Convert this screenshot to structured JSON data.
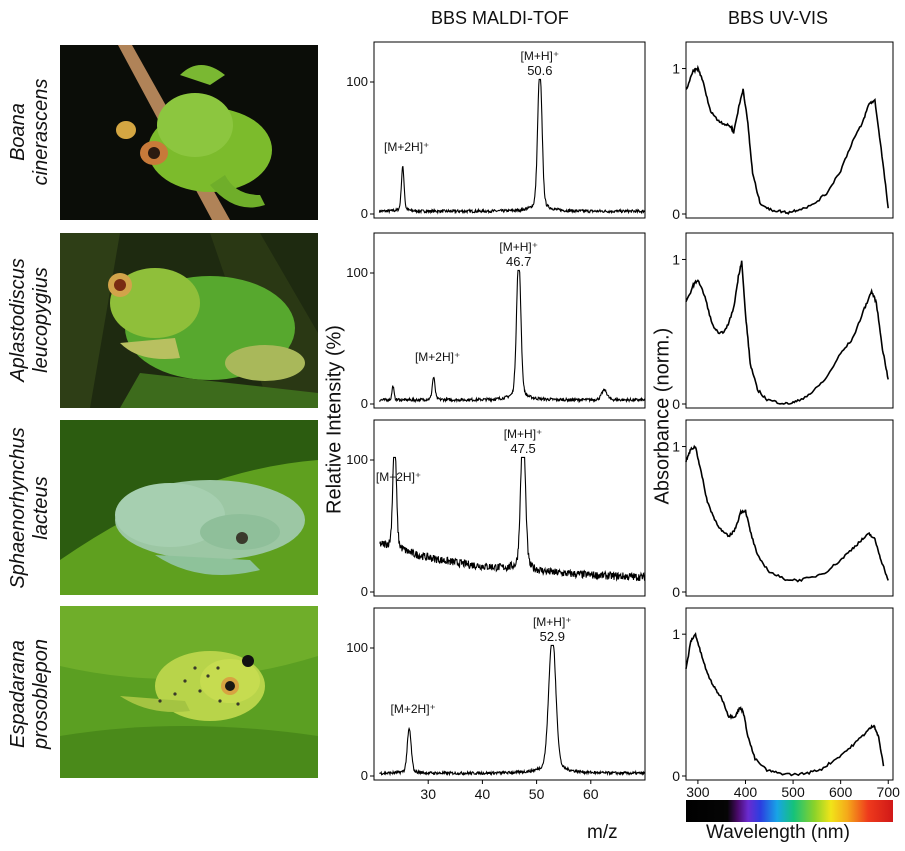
{
  "titles": {
    "maldi": "BBS MALDI-TOF",
    "uvvis": "BBS UV-VIS"
  },
  "species": [
    {
      "genus": "Boana",
      "epithet": "cinerascens"
    },
    {
      "genus": "Aplastodiscus",
      "epithet": "leucopygius"
    },
    {
      "genus": "Sphaenorhynchus",
      "epithet": "lacteus"
    },
    {
      "genus": "Espadarana",
      "epithet": "prosoblepon"
    }
  ],
  "axis_labels": {
    "maldi_y": "Relative Intensity (%)",
    "uvvis_y": "Absorbance (norm.)",
    "maldi_x": "m/z",
    "uvvis_x": "Wavelength (nm)"
  },
  "colors": {
    "axis": "#000000",
    "line": "#000000",
    "leaf_green": "#4c8f1e",
    "frog_green": "#8cc63f"
  },
  "chart_data": [
    {
      "type": "line",
      "panel": "maldi",
      "species": "Boana cinerascens",
      "xlim": [
        20,
        70
      ],
      "ylim": [
        0,
        100
      ],
      "yticks": [
        0,
        100
      ],
      "peaks": [
        {
          "x": 50.6,
          "y": 100,
          "label": "[M+H]⁺",
          "value_label": "50.6",
          "w": 0.55
        },
        {
          "x": 25.3,
          "y": 31,
          "label": "[M+2H]⁺",
          "w": 0.35
        }
      ],
      "baseline": 2
    },
    {
      "type": "line",
      "panel": "maldi",
      "species": "Aplastodiscus leucopygius",
      "xlim": [
        20,
        70
      ],
      "ylim": [
        0,
        100
      ],
      "yticks": [
        0,
        100
      ],
      "peaks": [
        {
          "x": 46.7,
          "y": 100,
          "label": "[M+H]⁺",
          "value_label": "46.7",
          "w": 0.55
        },
        {
          "x": 31.0,
          "y": 16,
          "label": "[M+2H]⁺",
          "w": 0.35
        },
        {
          "x": 23.5,
          "y": 10,
          "w": 0.25
        },
        {
          "x": 62.5,
          "y": 7,
          "w": 0.7
        }
      ],
      "baseline": 3
    },
    {
      "type": "line",
      "panel": "maldi",
      "species": "Sphaenorhynchus lacteus",
      "xlim": [
        20,
        70
      ],
      "ylim": [
        0,
        100
      ],
      "yticks": [
        0,
        100
      ],
      "peaks": [
        {
          "x": 47.5,
          "y": 100,
          "label": "[M+H]⁺",
          "value_label": "47.5",
          "w": 0.6
        },
        {
          "x": 23.8,
          "y": 78,
          "label": "[M+2H]⁺",
          "w": 0.45
        }
      ],
      "baseline": 28,
      "baseline_end": 9
    },
    {
      "type": "line",
      "panel": "maldi",
      "species": "Espadarana prosoblepon",
      "xlim": [
        20,
        70
      ],
      "ylim": [
        0,
        100
      ],
      "yticks": [
        0,
        100
      ],
      "xticks": [
        30,
        40,
        50,
        60
      ],
      "peaks": [
        {
          "x": 52.9,
          "y": 100,
          "label": "[M+H]⁺",
          "value_label": "52.9",
          "w": 0.9
        },
        {
          "x": 26.5,
          "y": 32,
          "label": "[M+2H]⁺",
          "w": 0.5
        }
      ],
      "baseline": 2
    },
    {
      "type": "line",
      "panel": "uvvis",
      "species": "Boana cinerascens",
      "xlim": [
        275,
        710
      ],
      "ylim": [
        0,
        1.1
      ],
      "yticks": [
        0,
        1
      ],
      "x": [
        275,
        290,
        300,
        310,
        325,
        340,
        355,
        370,
        375,
        385,
        395,
        405,
        415,
        430,
        450,
        470,
        490,
        510,
        540,
        570,
        600,
        625,
        645,
        660,
        672,
        685,
        700
      ],
      "y": [
        0.85,
        0.98,
        1.0,
        0.92,
        0.72,
        0.65,
        0.62,
        0.6,
        0.56,
        0.72,
        0.86,
        0.62,
        0.28,
        0.08,
        0.03,
        0.02,
        0.01,
        0.03,
        0.06,
        0.14,
        0.3,
        0.5,
        0.62,
        0.76,
        0.78,
        0.45,
        0.04
      ]
    },
    {
      "type": "line",
      "panel": "uvvis",
      "species": "Aplastodiscus leucopygius",
      "xlim": [
        275,
        710
      ],
      "ylim": [
        0,
        1.1
      ],
      "yticks": [
        0,
        1
      ],
      "x": [
        275,
        290,
        300,
        315,
        330,
        345,
        360,
        375,
        385,
        392,
        400,
        410,
        425,
        445,
        470,
        490,
        510,
        540,
        570,
        600,
        625,
        650,
        665,
        675,
        688,
        700
      ],
      "y": [
        0.7,
        0.82,
        0.86,
        0.74,
        0.55,
        0.48,
        0.52,
        0.66,
        0.88,
        0.99,
        0.62,
        0.28,
        0.1,
        0.03,
        0.01,
        0.0,
        0.02,
        0.08,
        0.18,
        0.35,
        0.45,
        0.66,
        0.78,
        0.7,
        0.38,
        0.17
      ]
    },
    {
      "type": "line",
      "panel": "uvvis",
      "species": "Sphaenorhynchus lacteus",
      "xlim": [
        275,
        710
      ],
      "ylim": [
        0,
        1.1
      ],
      "yticks": [
        0,
        1
      ],
      "x": [
        275,
        285,
        295,
        305,
        320,
        335,
        350,
        365,
        378,
        390,
        400,
        410,
        425,
        450,
        480,
        510,
        540,
        570,
        600,
        625,
        645,
        660,
        672,
        685,
        700
      ],
      "y": [
        0.9,
        0.98,
        1.0,
        0.85,
        0.62,
        0.5,
        0.42,
        0.38,
        0.43,
        0.55,
        0.56,
        0.42,
        0.25,
        0.14,
        0.09,
        0.08,
        0.1,
        0.14,
        0.22,
        0.3,
        0.36,
        0.4,
        0.36,
        0.22,
        0.08
      ]
    },
    {
      "type": "line",
      "panel": "uvvis",
      "species": "Espadarana prosoblepon",
      "xlim": [
        275,
        710
      ],
      "ylim": [
        0,
        1.1
      ],
      "yticks": [
        0,
        1
      ],
      "xticks": [
        300,
        400,
        500,
        600,
        700
      ],
      "x": [
        275,
        285,
        295,
        305,
        320,
        335,
        350,
        365,
        378,
        388,
        395,
        405,
        420,
        445,
        470,
        500,
        530,
        560,
        590,
        620,
        645,
        660,
        670,
        680,
        690
      ],
      "y": [
        0.75,
        0.95,
        1.0,
        0.88,
        0.72,
        0.62,
        0.55,
        0.42,
        0.42,
        0.48,
        0.46,
        0.28,
        0.12,
        0.04,
        0.02,
        0.01,
        0.02,
        0.05,
        0.12,
        0.2,
        0.28,
        0.33,
        0.36,
        0.27,
        0.07
      ]
    }
  ]
}
